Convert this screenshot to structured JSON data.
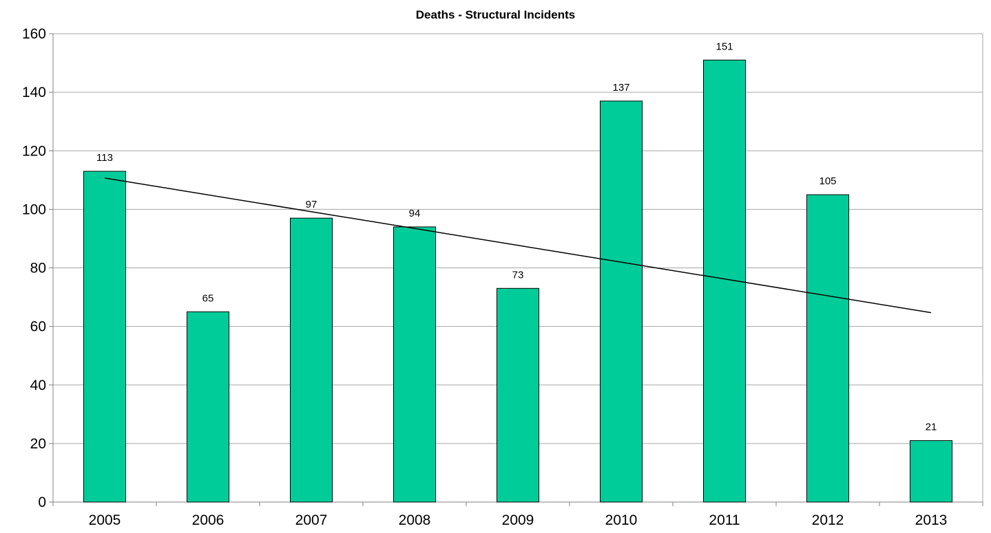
{
  "chart_data": {
    "type": "bar",
    "title": "Deaths - Structural Incidents",
    "xlabel": "",
    "ylabel": "",
    "categories": [
      "2005",
      "2006",
      "2007",
      "2008",
      "2009",
      "2010",
      "2011",
      "2012",
      "2013"
    ],
    "values": [
      113,
      65,
      97,
      94,
      73,
      137,
      151,
      105,
      21
    ],
    "data_labels": [
      "113",
      "65",
      "97",
      "94",
      "73",
      "137",
      "151",
      "105",
      "21"
    ],
    "ylim": [
      0,
      160
    ],
    "yticks": [
      "0",
      "20",
      "40",
      "60",
      "80",
      "100",
      "120",
      "140",
      "160"
    ],
    "grid": true,
    "legend": "none",
    "trendline": {
      "type": "linear",
      "start_value": 110.7,
      "end_value": 64.7
    },
    "colors": {
      "bar": "#00CC99",
      "bar_border": "#000000",
      "grid": "#A6A6A6",
      "trendline": "#000000"
    }
  }
}
